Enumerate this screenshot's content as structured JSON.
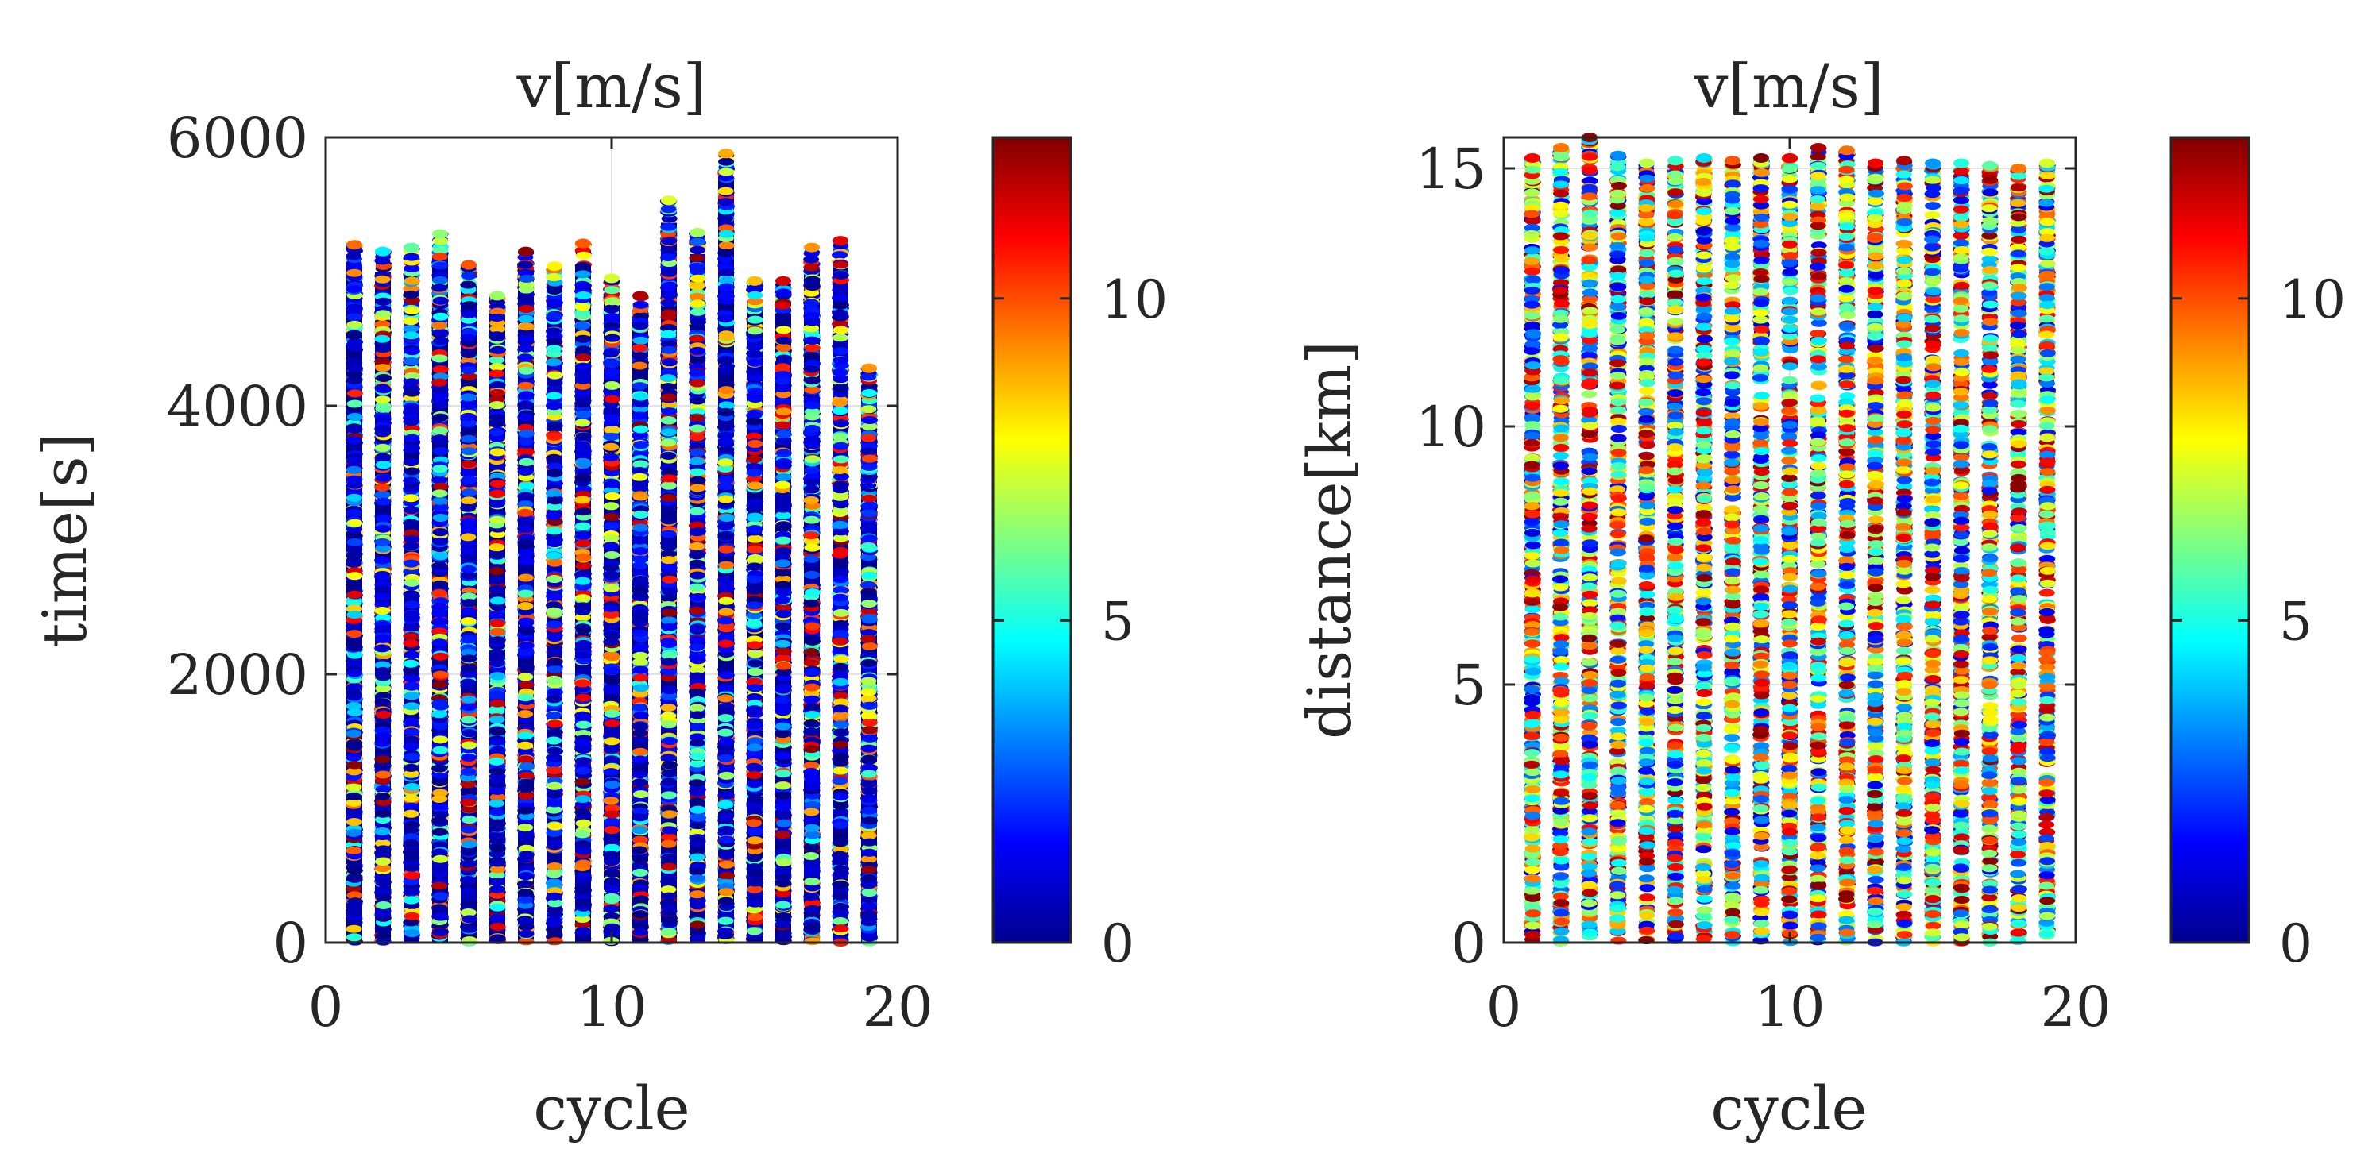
{
  "chart_data": [
    {
      "type": "scatter",
      "title": "v[m/s]",
      "xlabel": "cycle",
      "ylabel": "time[s]",
      "xlim": [
        0,
        20
      ],
      "ylim": [
        0,
        6000
      ],
      "xticks": [
        0,
        10,
        20
      ],
      "yticks": [
        0,
        2000,
        4000,
        6000
      ],
      "xtick_labels": [
        "0",
        "10",
        "20"
      ],
      "ytick_labels": [
        "0",
        "2000",
        "4000",
        "6000"
      ],
      "grid": true,
      "colormap": "jet",
      "color_range": [
        0,
        12.5
      ],
      "colorbar_ticks": [
        0,
        5,
        10
      ],
      "colorbar_tick_labels": [
        "0",
        "5",
        "10"
      ],
      "cycles": [
        1,
        2,
        3,
        4,
        5,
        6,
        7,
        8,
        9,
        10,
        11,
        12,
        13,
        14,
        15,
        16,
        17,
        18,
        19
      ],
      "max_y": [
        5200,
        5150,
        5180,
        5280,
        5050,
        4820,
        5150,
        5040,
        5210,
        4950,
        4820,
        5530,
        5290,
        5880,
        4930,
        4930,
        5180,
        5230,
        4280
      ],
      "dominant_low_speed_from": 800
    },
    {
      "type": "scatter",
      "title": "v[m/s]",
      "xlabel": "cycle",
      "ylabel": "distance[km]",
      "xlim": [
        0,
        20
      ],
      "ylim": [
        0,
        15.6
      ],
      "xticks": [
        0,
        10,
        20
      ],
      "yticks": [
        0,
        5,
        10,
        15
      ],
      "xtick_labels": [
        "0",
        "10",
        "20"
      ],
      "ytick_labels": [
        "0",
        "5",
        "10",
        "15"
      ],
      "grid": true,
      "colormap": "jet",
      "color_range": [
        0,
        12.5
      ],
      "colorbar_ticks": [
        0,
        5,
        10
      ],
      "colorbar_tick_labels": [
        "0",
        "5",
        "10"
      ],
      "cycles": [
        1,
        2,
        3,
        4,
        5,
        6,
        7,
        8,
        9,
        10,
        11,
        12,
        13,
        14,
        15,
        16,
        17,
        18,
        19
      ],
      "max_y": [
        15.2,
        15.4,
        15.6,
        15.25,
        15.1,
        15.15,
        15.2,
        15.15,
        15.2,
        15.2,
        15.4,
        15.35,
        15.1,
        15.15,
        15.1,
        15.1,
        15.05,
        15.0,
        15.1
      ]
    }
  ]
}
